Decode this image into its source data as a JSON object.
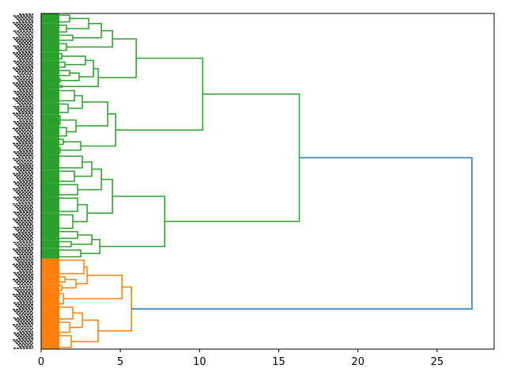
{
  "chart_data": {
    "type": "dendrogram",
    "title": "",
    "xlabel": "",
    "ylabel": "",
    "xlim": [
      0,
      28.6
    ],
    "xticks": [
      "0",
      "5",
      "10",
      "15",
      "20",
      "25"
    ],
    "xtick_values": [
      0,
      5,
      10,
      15,
      20,
      25
    ],
    "orientation": "left",
    "leaf_count": 200,
    "colors": {
      "above_threshold": "#1f77b4",
      "cluster_1": "#2ca02c",
      "cluster_2": "#ff7f0e"
    },
    "tree": {
      "h": 27.2,
      "color": "#1f77b4",
      "c": [
        {
          "h": 16.3,
          "color": "#2ca02c",
          "c": [
            {
              "h": 10.2,
              "c": [
                {
                  "h": 6.0,
                  "c": [
                    {
                      "h": 4.5,
                      "c": [
                        {
                          "h": 3.8,
                          "c": [
                            {
                              "h": 3.0,
                              "c": [
                                {
                                  "n": 6,
                                  "h": 1.8
                                },
                                {
                                  "n": 6,
                                  "h": 1.6
                                }
                              ]
                            },
                            {
                              "n": 5,
                              "h": 2.0
                            }
                          ]
                        },
                        {
                          "n": 6,
                          "h": 1.6
                        }
                      ]
                    },
                    {
                      "h": 3.6,
                      "c": [
                        {
                          "h": 3.3,
                          "c": [
                            {
                              "h": 2.8,
                              "c": [
                                {
                                  "n": 5,
                                  "h": 1.3
                                },
                                {
                                  "n": 5,
                                  "h": 1.5
                                }
                              ]
                            },
                            {
                              "h": 2.4,
                              "c": [
                                {
                                  "n": 5,
                                  "h": 1.8
                                },
                                {
                                  "n": 4,
                                  "h": 1.2
                                }
                              ]
                            }
                          ]
                        },
                        {
                          "n": 3,
                          "h": 1.3
                        }
                      ]
                    }
                  ]
                },
                {
                  "h": 4.7,
                  "c": [
                    {
                      "h": 4.2,
                      "c": [
                        {
                          "h": 2.6,
                          "c": [
                            {
                              "n": 8,
                              "h": 2.1
                            },
                            {
                              "n": 7,
                              "h": 1.7
                            }
                          ]
                        },
                        {
                          "h": 2.2,
                          "c": [
                            {
                              "n": 7,
                              "h": 1.2
                            },
                            {
                              "n": 7,
                              "h": 1.6
                            }
                          ]
                        }
                      ]
                    },
                    {
                      "h": 2.5,
                      "c": [
                        {
                          "n": 5,
                          "h": 1.4
                        },
                        {
                          "n": 5,
                          "h": 1.2
                        }
                      ]
                    }
                  ]
                }
              ]
            },
            {
              "h": 7.8,
              "c": [
                {
                  "h": 4.5,
                  "c": [
                    {
                      "h": 3.8,
                      "c": [
                        {
                          "h": 3.2,
                          "c": [
                            {
                              "n": 9,
                              "h": 2.6
                            },
                            {
                              "n": 8,
                              "h": 2.1
                            }
                          ]
                        },
                        {
                          "n": 8,
                          "h": 2.3
                        }
                      ]
                    },
                    {
                      "h": 2.9,
                      "c": [
                        {
                          "n": 10,
                          "h": 2.3
                        },
                        {
                          "n": 10,
                          "h": 2.0
                        }
                      ]
                    }
                  ]
                },
                {
                  "h": 3.7,
                  "c": [
                    {
                      "h": 3.2,
                      "c": [
                        {
                          "n": 6,
                          "h": 2.3
                        },
                        {
                          "n": 5,
                          "h": 1.9
                        }
                      ]
                    },
                    {
                      "n": 6,
                      "h": 2.5
                    }
                  ]
                }
              ]
            }
          ]
        },
        {
          "h": 5.7,
          "color": "#ff7f0e",
          "c": [
            {
              "h": 5.1,
              "c": [
                {
                  "h": 2.9,
                  "c": [
                    {
                      "n": 10,
                      "h": 2.7
                    },
                    {
                      "h": 2.2,
                      "c": [
                        {
                          "n": 5,
                          "h": 1.5
                        },
                        {
                          "n": 5,
                          "h": 1.3
                        }
                      ]
                    }
                  ]
                },
                {
                  "n": 8,
                  "h": 1.4
                }
              ]
            },
            {
              "h": 3.6,
              "c": [
                {
                  "h": 2.6,
                  "c": [
                    {
                      "n": 9,
                      "h": 2.0
                    },
                    {
                      "n": 8,
                      "h": 1.8
                    }
                  ]
                },
                {
                  "n": 9,
                  "h": 1.9
                }
              ]
            }
          ]
        }
      ]
    }
  }
}
